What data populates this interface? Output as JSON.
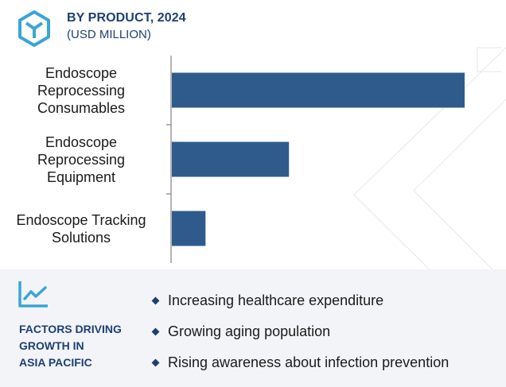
{
  "header": {
    "title": "BY PRODUCT, 2024",
    "subtitle": "(USD MILLION)",
    "icon": "cube-icon"
  },
  "colors": {
    "bar": "#2e5b8c",
    "heading": "#1d3f73",
    "panel_bg": "#f3f4f8"
  },
  "chart_data": {
    "type": "bar",
    "orientation": "horizontal",
    "title": "BY PRODUCT, 2024",
    "subtitle": "(USD MILLION)",
    "categories": [
      [
        "Endoscope",
        "Reprocessing",
        "Consumables"
      ],
      [
        "Endoscope",
        "Reprocessing",
        "Equipment"
      ],
      [
        "Endoscope Tracking",
        "Solutions"
      ]
    ],
    "values": [
      100,
      40,
      11.5
    ],
    "value_axis_labels_shown": false,
    "grid": false,
    "legend": "none"
  },
  "factors": {
    "icon": "trend-chart-icon",
    "title_lines": [
      "FACTORS DRIVING",
      "GROWTH IN",
      "ASIA PACIFIC"
    ],
    "items": [
      "Increasing healthcare expenditure",
      "Growing aging population",
      "Rising awareness about infection prevention"
    ]
  }
}
